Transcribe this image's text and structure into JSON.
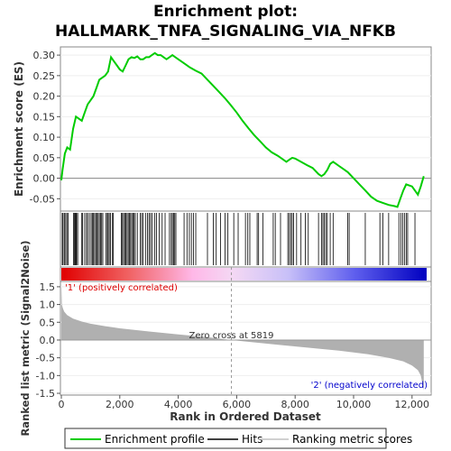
{
  "chart_data": {
    "type": "line",
    "title_line1": "Enrichment plot:",
    "title_line2": "HALLMARK_TNFA_SIGNALING_VIA_NFKB",
    "es_panel": {
      "ylabel": "Enrichment score (ES)",
      "ylim": [
        -0.08,
        0.32
      ],
      "yticks": [
        "0.30",
        "0.25",
        "0.20",
        "0.15",
        "0.10",
        "0.05",
        "0.00",
        "-0.05"
      ],
      "ytick_values": [
        0.3,
        0.25,
        0.2,
        0.15,
        0.1,
        0.05,
        0.0,
        -0.05
      ],
      "series_name": "Enrichment profile",
      "line_color": "#00cc00",
      "x": [
        0,
        40,
        80,
        120,
        200,
        300,
        400,
        500,
        600,
        700,
        800,
        900,
        1000,
        1100,
        1200,
        1300,
        1400,
        1500,
        1600,
        1700,
        1800,
        1900,
        2000,
        2100,
        2200,
        2300,
        2400,
        2500,
        2600,
        2700,
        2800,
        2900,
        3000,
        3100,
        3200,
        3300,
        3400,
        3500,
        3600,
        3700,
        3800,
        3900,
        4000,
        4200,
        4400,
        4600,
        4800,
        5000,
        5200,
        5400,
        5600,
        5800,
        6000,
        6200,
        6400,
        6600,
        6800,
        7000,
        7200,
        7400,
        7600,
        7700,
        7800,
        7900,
        8000,
        8200,
        8400,
        8600,
        8800,
        8900,
        9000,
        9100,
        9200,
        9300,
        9400,
        9500,
        9600,
        9800,
        10000,
        10200,
        10400,
        10600,
        10800,
        11000,
        11200,
        11400,
        11500,
        11600,
        11700,
        11800,
        12000,
        12200,
        12300,
        12400
      ],
      "y": [
        -0.005,
        0.02,
        0.04,
        0.06,
        0.075,
        0.07,
        0.12,
        0.15,
        0.145,
        0.14,
        0.16,
        0.18,
        0.19,
        0.2,
        0.22,
        0.24,
        0.245,
        0.25,
        0.26,
        0.295,
        0.285,
        0.275,
        0.265,
        0.26,
        0.275,
        0.29,
        0.295,
        0.293,
        0.297,
        0.29,
        0.29,
        0.295,
        0.295,
        0.3,
        0.305,
        0.3,
        0.3,
        0.295,
        0.29,
        0.295,
        0.3,
        0.295,
        0.29,
        0.28,
        0.27,
        0.262,
        0.255,
        0.24,
        0.225,
        0.21,
        0.195,
        0.178,
        0.16,
        0.14,
        0.122,
        0.105,
        0.09,
        0.075,
        0.063,
        0.055,
        0.045,
        0.04,
        0.045,
        0.05,
        0.048,
        0.04,
        0.032,
        0.025,
        0.01,
        0.005,
        0.01,
        0.02,
        0.035,
        0.04,
        0.035,
        0.03,
        0.025,
        0.015,
        0.0,
        -0.015,
        -0.03,
        -0.045,
        -0.055,
        -0.06,
        -0.065,
        -0.068,
        -0.07,
        -0.05,
        -0.03,
        -0.015,
        -0.02,
        -0.04,
        -0.02,
        0.005
      ]
    },
    "hits": [
      30,
      60,
      110,
      150,
      190,
      230,
      420,
      450,
      480,
      500,
      520,
      560,
      700,
      730,
      800,
      860,
      900,
      960,
      1020,
      1060,
      1100,
      1140,
      1180,
      1220,
      1260,
      1300,
      1340,
      1380,
      1420,
      1520,
      1570,
      1600,
      1640,
      1680,
      1750,
      1780,
      2050,
      2090,
      2130,
      2170,
      2210,
      2250,
      2290,
      2330,
      2370,
      2410,
      2450,
      2490,
      2530,
      2600,
      2700,
      2750,
      2800,
      2880,
      2950,
      3000,
      3050,
      3100,
      3200,
      3260,
      3350,
      3450,
      3550,
      3700,
      3760,
      3800,
      3840,
      3880,
      3920,
      4200,
      4300,
      4380,
      4450,
      4520,
      4600,
      5000,
      5200,
      5300,
      5450,
      5600,
      5700,
      5900,
      6050,
      6300,
      6380,
      6450,
      6700,
      6750,
      6900,
      7250,
      7320,
      7500,
      7750,
      7800,
      7850,
      7900,
      7950,
      8050,
      8200,
      8350,
      8450,
      8800,
      8900,
      8950,
      9000,
      9050,
      9100,
      9200,
      9300,
      9800,
      9850,
      10400,
      10900,
      11000,
      11200,
      11550,
      11620,
      11680,
      11740,
      11800,
      11850,
      12100
    ],
    "xlim": [
      0,
      12500
    ],
    "rank_panel": {
      "ylabel": "Ranked list metric (Signal2Noise)",
      "ylim": [
        -1.55,
        1.65
      ],
      "yticks": [
        "1.5",
        "1.0",
        "0.5",
        "0.0",
        "-0.5",
        "-1.0",
        "-1.5"
      ],
      "ytick_values": [
        1.5,
        1.0,
        0.5,
        0.0,
        -0.5,
        -1.0,
        -1.5
      ],
      "x": [
        0,
        20,
        50,
        100,
        200,
        400,
        700,
        1000,
        1500,
        2000,
        3000,
        4000,
        5000,
        5819,
        6500,
        7500,
        8500,
        9500,
        10500,
        11200,
        11700,
        12000,
        12200,
        12300,
        12350,
        12400
      ],
      "y": [
        1.58,
        1.0,
        0.9,
        0.8,
        0.7,
        0.6,
        0.52,
        0.46,
        0.39,
        0.33,
        0.24,
        0.16,
        0.08,
        0.0,
        -0.06,
        -0.14,
        -0.22,
        -0.3,
        -0.4,
        -0.5,
        -0.6,
        -0.72,
        -0.85,
        -1.0,
        -1.2,
        -1.42
      ],
      "fill_color": "#b0b0b0",
      "zero_cross_label": "Zero cross at 5819",
      "zero_cross_x": 5819,
      "pos_label": "'1' (positively correlated)",
      "neg_label": "'2' (negatively correlated)",
      "pos_color": "#dd0000",
      "neg_color": "#0000cc"
    },
    "xlabel": "Rank in Ordered Dataset",
    "xticks": [
      "0",
      "2,000",
      "4,000",
      "6,000",
      "8,000",
      "10,000",
      "12,000"
    ],
    "xtick_values": [
      0,
      2000,
      4000,
      6000,
      8000,
      10000,
      12000
    ],
    "legend": {
      "placement": "bottom",
      "items": [
        "Enrichment profile",
        "Hits",
        "Ranking metric scores"
      ]
    }
  }
}
